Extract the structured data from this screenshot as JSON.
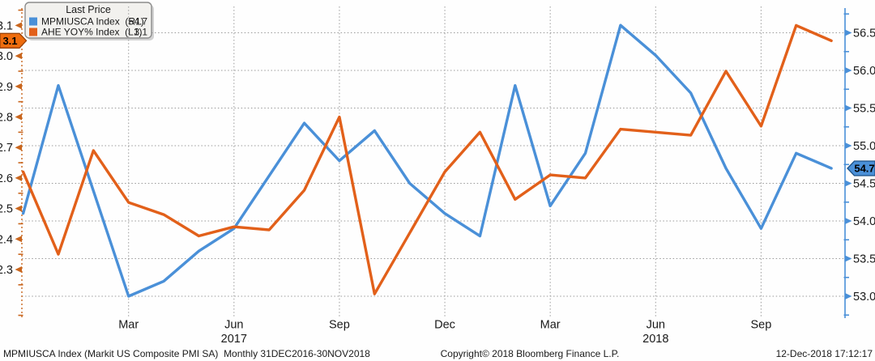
{
  "legend": {
    "title": "Last Price",
    "entries": [
      {
        "label": "MPMIUSCA Index  (R1)",
        "value": "54.7",
        "swatch_color": "#4a90d8"
      },
      {
        "label": "AHE YOY% Index  (L1)",
        "value": "3.1",
        "swatch_color": "#e2601a"
      }
    ]
  },
  "badges": {
    "left_last_price": "3.1",
    "right_last_price": "54.7"
  },
  "footer": {
    "left": "MPMIUSCA Index (Markit US Composite PMI SA)  Monthly 31DEC2016-30NOV2018",
    "center": "Copyright© 2018 Bloomberg Finance L.P.",
    "right": "12-Dec-2018 17:12:17"
  },
  "colors": {
    "blue_series": "#4a90d8",
    "orange_series": "#e2601a",
    "left_axis": "#c9661e",
    "right_axis": "#4a90d8",
    "grid": "#9a9a9a",
    "legend_bg": "#f2f1ee",
    "legend_border": "#8c8c8c",
    "badge_left_bg": "#ee6c0d",
    "badge_left_border": "#9a4106",
    "badge_right_bg": "#4a90d8",
    "badge_right_border": "#1c5186",
    "text": "#1a1a1a"
  },
  "chart_data": {
    "type": "line",
    "title": "Last Price",
    "grid": "dotted",
    "legend_position": "top-left",
    "x_months": [
      "2016-12",
      "2017-01",
      "2017-02",
      "2017-03",
      "2017-04",
      "2017-05",
      "2017-06",
      "2017-07",
      "2017-08",
      "2017-09",
      "2017-10",
      "2017-11",
      "2017-12",
      "2018-01",
      "2018-02",
      "2018-03",
      "2018-04",
      "2018-05",
      "2018-06",
      "2018-07",
      "2018-08",
      "2018-09",
      "2018-10",
      "2018-11"
    ],
    "x_tick_labels": [
      {
        "index": 3,
        "label": "Mar"
      },
      {
        "index": 6,
        "label": "Jun",
        "year": "2017"
      },
      {
        "index": 9,
        "label": "Sep"
      },
      {
        "index": 12,
        "label": "Dec"
      },
      {
        "index": 15,
        "label": "Mar"
      },
      {
        "index": 18,
        "label": "Jun",
        "year": "2018"
      },
      {
        "index": 21,
        "label": "Sep"
      }
    ],
    "left_axis": {
      "series": "AHE YOY% Index",
      "ticks": [
        2.3,
        2.4,
        2.5,
        2.6,
        2.7,
        2.8,
        2.9,
        3.0,
        3.1
      ],
      "minor_tick_step": 0.05,
      "ylim": [
        2.14,
        3.16
      ],
      "last_value_label": "3.1"
    },
    "right_axis": {
      "series": "MPMIUSCA Index",
      "ticks": [
        53.0,
        53.5,
        54.0,
        54.5,
        55.0,
        55.5,
        56.0,
        56.5
      ],
      "minor_tick_step": 0.25,
      "ylim": [
        52.71,
        56.83
      ],
      "last_value_label": "54.7"
    },
    "series": [
      {
        "name": "MPMIUSCA Index",
        "axis_ref": "R1",
        "axis": "right",
        "color": "#4a90d8",
        "values": [
          54.1,
          55.8,
          54.4,
          53.0,
          53.2,
          53.6,
          53.9,
          54.6,
          55.3,
          54.8,
          55.2,
          54.5,
          54.1,
          53.8,
          55.8,
          54.2,
          54.9,
          56.6,
          56.2,
          55.7,
          54.7,
          53.9,
          54.9,
          54.7
        ]
      },
      {
        "name": "AHE YOY% Index",
        "axis_ref": "L1",
        "axis": "left",
        "color": "#e2601a",
        "values": [
          2.62,
          2.35,
          2.69,
          2.52,
          2.48,
          2.41,
          2.44,
          2.43,
          2.56,
          2.8,
          2.22,
          2.42,
          2.62,
          2.75,
          2.53,
          2.61,
          2.6,
          2.76,
          2.75,
          2.74,
          2.95,
          2.77,
          3.1,
          3.05
        ]
      }
    ]
  }
}
